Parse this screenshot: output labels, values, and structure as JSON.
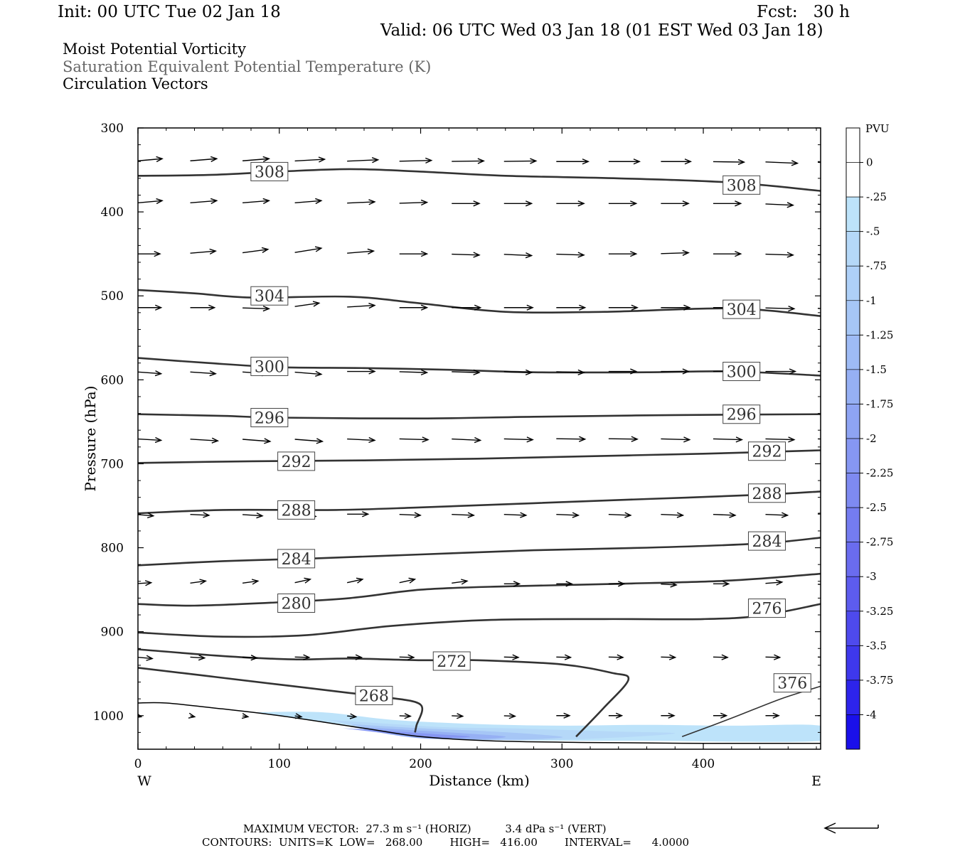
{
  "header": {
    "init": "Init: 00 UTC Tue 02 Jan 18",
    "fcst": "Fcst:   30 h",
    "valid": "Valid: 06 UTC Wed 03 Jan 18 (01 EST Wed 03 Jan 18)",
    "field1": "Moist Potential Vorticity",
    "field2": "Saturation Equivalent Potential Temperature (K)",
    "field3": "Circulation Vectors"
  },
  "footer": {
    "max_vector": "MAXIMUM VECTOR:  27.3 m s⁻¹ (HORIZ)          3.4 dPa s⁻¹ (VERT)",
    "contours": "CONTOURS:  UNITS=K  LOW=   268.00        HIGH=   416.00        INTERVAL=      4.0000"
  },
  "chart_data": {
    "type": "contour",
    "xlabel": "Distance (km)",
    "ylabel": "Pressure (hPa)",
    "xlim": [
      0,
      483
    ],
    "ylim": [
      300,
      1040
    ],
    "y_log": false,
    "x_ticks": [
      "0",
      "100",
      "200",
      "300",
      "400"
    ],
    "x_tick_values": [
      0,
      100,
      200,
      300,
      400
    ],
    "y_ticks": [
      "300",
      "400",
      "500",
      "600",
      "700",
      "800",
      "900",
      "1000"
    ],
    "y_tick_values": [
      300,
      400,
      500,
      600,
      700,
      800,
      900,
      1000
    ],
    "west_label": "W",
    "east_label": "E",
    "colors": {
      "contour": "#333333",
      "terrain": "#000000",
      "vector": "#000000"
    },
    "colorbar": {
      "title": "PVU",
      "labels": [
        "0",
        "-.25",
        "-.5",
        "-.75",
        "-1",
        "-1.25",
        "-1.5",
        "-1.75",
        "-2",
        "-2.25",
        "-2.5",
        "-2.75",
        "-3",
        "-3.25",
        "-3.5",
        "-3.75",
        "-4"
      ],
      "colors": [
        "#ffffff",
        "#ffffff",
        "#bde3fa",
        "#b5d8f8",
        "#aed0f8",
        "#a6c6f6",
        "#9ebbf5",
        "#96b0f4",
        "#8ea4f3",
        "#8697f2",
        "#7e8af1",
        "#747cf0",
        "#6a6cef",
        "#5d5cee",
        "#4e4aed",
        "#3e38ec",
        "#2d24eb",
        "#1a10ea"
      ]
    },
    "terrain": [
      [
        0,
        985
      ],
      [
        20,
        985
      ],
      [
        60,
        992
      ],
      [
        100,
        1000
      ],
      [
        160,
        1015
      ],
      [
        200,
        1025
      ],
      [
        250,
        1030
      ],
      [
        320,
        1032
      ],
      [
        400,
        1033
      ],
      [
        483,
        1033
      ]
    ],
    "contours": [
      {
        "label": "308",
        "points": [
          [
            0,
            357
          ],
          [
            50,
            356
          ],
          [
            100,
            352
          ],
          [
            150,
            349
          ],
          [
            200,
            352
          ],
          [
            260,
            357
          ],
          [
            340,
            360
          ],
          [
            420,
            365
          ],
          [
            483,
            375
          ]
        ],
        "label_at": [
          [
            93,
            352
          ],
          [
            427,
            368
          ]
        ]
      },
      {
        "label": "304",
        "points": [
          [
            0,
            493
          ],
          [
            40,
            497
          ],
          [
            80,
            502
          ],
          [
            150,
            501
          ],
          [
            200,
            509
          ],
          [
            260,
            519
          ],
          [
            330,
            519
          ],
          [
            420,
            515
          ],
          [
            483,
            524
          ]
        ],
        "label_at": [
          [
            93,
            500
          ],
          [
            427,
            516
          ]
        ]
      },
      {
        "label": "300",
        "points": [
          [
            0,
            574
          ],
          [
            50,
            580
          ],
          [
            100,
            585
          ],
          [
            160,
            586
          ],
          [
            220,
            588
          ],
          [
            280,
            591
          ],
          [
            360,
            591
          ],
          [
            420,
            590
          ],
          [
            483,
            595
          ]
        ],
        "label_at": [
          [
            93,
            584
          ],
          [
            427,
            590
          ]
        ]
      },
      {
        "label": "296",
        "points": [
          [
            0,
            641
          ],
          [
            60,
            643
          ],
          [
            100,
            645
          ],
          [
            200,
            646
          ],
          [
            280,
            644
          ],
          [
            380,
            642
          ],
          [
            483,
            641
          ]
        ],
        "label_at": [
          [
            93,
            645
          ],
          [
            427,
            641
          ]
        ]
      },
      {
        "label": "292",
        "points": [
          [
            0,
            699
          ],
          [
            80,
            697
          ],
          [
            160,
            696
          ],
          [
            240,
            694
          ],
          [
            320,
            691
          ],
          [
            400,
            688
          ],
          [
            483,
            684
          ]
        ],
        "label_at": [
          [
            112,
            697
          ],
          [
            445,
            685
          ]
        ]
      },
      {
        "label": "288",
        "points": [
          [
            0,
            759
          ],
          [
            60,
            755
          ],
          [
            140,
            755
          ],
          [
            200,
            752
          ],
          [
            280,
            747
          ],
          [
            360,
            742
          ],
          [
            440,
            737
          ],
          [
            483,
            733
          ]
        ],
        "label_at": [
          [
            112,
            755
          ],
          [
            445,
            735
          ]
        ]
      },
      {
        "label": "284",
        "points": [
          [
            0,
            821
          ],
          [
            60,
            816
          ],
          [
            120,
            813
          ],
          [
            200,
            808
          ],
          [
            280,
            803
          ],
          [
            360,
            800
          ],
          [
            440,
            795
          ],
          [
            483,
            788
          ]
        ],
        "label_at": [
          [
            112,
            813
          ],
          [
            445,
            792
          ]
        ]
      },
      {
        "label": "280",
        "points": [
          [
            0,
            867
          ],
          [
            40,
            869
          ],
          [
            100,
            865
          ],
          [
            150,
            860
          ],
          [
            200,
            850
          ],
          [
            260,
            846
          ],
          [
            340,
            843
          ],
          [
            420,
            839
          ],
          [
            483,
            831
          ]
        ],
        "label_at": [
          [
            112,
            866
          ]
        ]
      },
      {
        "label": "276",
        "points": [
          [
            0,
            901
          ],
          [
            60,
            906
          ],
          [
            120,
            904
          ],
          [
            180,
            893
          ],
          [
            250,
            886
          ],
          [
            330,
            885
          ],
          [
            400,
            885
          ],
          [
            440,
            881
          ],
          [
            483,
            867
          ]
        ],
        "label_at": [
          [
            445,
            872
          ]
        ]
      },
      {
        "label": "272",
        "points": [
          [
            0,
            921
          ],
          [
            60,
            929
          ],
          [
            110,
            933
          ],
          [
            150,
            932
          ],
          [
            200,
            934
          ],
          [
            240,
            934
          ],
          [
            300,
            939
          ],
          [
            335,
            949
          ],
          [
            347,
            957
          ],
          [
            330,
            990
          ],
          [
            310,
            1025
          ]
        ],
        "label_at": [
          [
            222,
            935
          ]
        ]
      },
      {
        "label": "268",
        "points": [
          [
            0,
            943
          ],
          [
            50,
            953
          ],
          [
            100,
            963
          ],
          [
            150,
            973
          ],
          [
            175,
            978
          ],
          [
            200,
            987
          ],
          [
            197,
            1012
          ],
          [
            196,
            1020
          ]
        ],
        "label_at": [
          [
            167,
            976
          ]
        ]
      },
      {
        "label": "376",
        "points": [
          [
            385,
            1025
          ],
          [
            420,
            1003
          ],
          [
            455,
            980
          ],
          [
            483,
            965
          ]
        ],
        "label_at": [
          [
            463,
            961
          ]
        ]
      }
    ],
    "mpv_fill": [
      {
        "level": "-.25",
        "points": [
          [
            80,
            996
          ],
          [
            130,
            996
          ],
          [
            180,
            1005
          ],
          [
            240,
            1010
          ],
          [
            300,
            1012
          ],
          [
            360,
            1011
          ],
          [
            420,
            1012
          ],
          [
            483,
            1012
          ],
          [
            483,
            1030
          ],
          [
            360,
            1030
          ],
          [
            250,
            1029
          ],
          [
            200,
            1024
          ],
          [
            160,
            1014
          ],
          [
            100,
            1000
          ]
        ]
      },
      {
        "level": "-.5",
        "points": [
          [
            135,
            1005
          ],
          [
            180,
            1010
          ],
          [
            220,
            1014
          ],
          [
            260,
            1015
          ],
          [
            300,
            1017
          ],
          [
            340,
            1019
          ],
          [
            380,
            1021
          ],
          [
            340,
            1026
          ],
          [
            280,
            1029
          ],
          [
            200,
            1026
          ],
          [
            160,
            1015
          ]
        ]
      },
      {
        "level": "-1",
        "points": [
          [
            150,
            1010
          ],
          [
            200,
            1015
          ],
          [
            240,
            1018
          ],
          [
            280,
            1022
          ],
          [
            300,
            1026
          ],
          [
            260,
            1029
          ],
          [
            210,
            1027
          ],
          [
            170,
            1019
          ]
        ]
      },
      {
        "level": "-1.5",
        "points": [
          [
            150,
            1013
          ],
          [
            190,
            1017
          ],
          [
            230,
            1021
          ],
          [
            260,
            1025
          ],
          [
            240,
            1028
          ],
          [
            200,
            1027
          ],
          [
            170,
            1020
          ]
        ]
      },
      {
        "level": "-2",
        "points": [
          [
            145,
            1015
          ],
          [
            175,
            1018
          ],
          [
            210,
            1022
          ],
          [
            235,
            1025
          ],
          [
            210,
            1027
          ],
          [
            180,
            1022
          ]
        ]
      }
    ],
    "vectors": [
      {
        "p": 340,
        "u": [
          22,
          24,
          24,
          27,
          28,
          29,
          29,
          29,
          29,
          28,
          27,
          28,
          29,
          28
        ],
        "w": [
          -0.5,
          -0.5,
          -0.5,
          -0.4,
          -0.3,
          -0.2,
          -0.1,
          -0.1,
          0,
          0,
          0,
          0.1,
          0.3,
          0.5
        ]
      },
      {
        "p": 390,
        "u": [
          22,
          24,
          24,
          24,
          25,
          25,
          25,
          25,
          25,
          25,
          25,
          25,
          25,
          25
        ],
        "w": [
          -0.5,
          -0.5,
          -0.5,
          -0.5,
          -0.3,
          -0.2,
          0,
          0,
          0,
          0,
          0,
          0,
          0.3,
          0.5
        ]
      },
      {
        "p": 450,
        "u": [
          20,
          23,
          23,
          24,
          24,
          25,
          25,
          25,
          25,
          25,
          25,
          25,
          25,
          25
        ],
        "w": [
          0,
          -0.5,
          -0.8,
          -1.0,
          -0.5,
          0,
          0.2,
          0.3,
          0.2,
          0,
          -0.2,
          0,
          0.2,
          0.5
        ]
      },
      {
        "p": 514,
        "u": [
          21,
          22,
          24,
          22,
          25,
          25,
          26,
          26,
          26,
          26,
          26,
          26,
          26,
          28
        ],
        "w": [
          0,
          0,
          0.2,
          -0.8,
          -0.4,
          0,
          0,
          0,
          0,
          0,
          0,
          0,
          0.2,
          0.5
        ]
      },
      {
        "p": 590,
        "u": [
          21,
          23,
          23,
          24,
          25,
          25,
          25,
          25,
          25,
          25,
          25,
          25,
          27,
          27
        ],
        "w": [
          0.4,
          0.4,
          0.4,
          0.5,
          0,
          0.2,
          0.2,
          0.2,
          0.2,
          0,
          0,
          0,
          0,
          0
        ]
      },
      {
        "p": 670,
        "u": [
          21,
          25,
          25,
          25,
          25,
          26,
          26,
          26,
          26,
          26,
          26,
          26,
          26,
          27
        ],
        "w": [
          0.3,
          0.4,
          0.5,
          0.5,
          0.3,
          0.2,
          0.3,
          0.2,
          0.1,
          0.1,
          0.2,
          0.2,
          0.2,
          0.2
        ]
      },
      {
        "p": 760,
        "u": [
          14,
          17,
          18,
          19,
          19,
          19,
          20,
          20,
          20,
          20,
          20,
          20,
          20,
          22
        ],
        "w": [
          0.3,
          0.2,
          0.3,
          0.4,
          0,
          0.2,
          0.2,
          0.2,
          0.2,
          0.2,
          0.2,
          0.2,
          0.2,
          -0.5
        ]
      },
      {
        "p": 843,
        "u": [
          12,
          14,
          14,
          14,
          14,
          14,
          14,
          14,
          14,
          14,
          14,
          14,
          15,
          15
        ],
        "w": [
          -0.2,
          -0.5,
          -0.5,
          -0.8,
          -0.8,
          -0.8,
          -0.5,
          0,
          0,
          0,
          0.2,
          0,
          -0.3,
          0.3
        ]
      },
      {
        "p": 930,
        "u": [
          13,
          13,
          13,
          13,
          13,
          13,
          13,
          13,
          13,
          13,
          13,
          13,
          13,
          13
        ],
        "w": [
          0.3,
          0.2,
          0.2,
          0.1,
          0.1,
          0.1,
          0.1,
          0.1,
          0.1,
          0.1,
          0.1,
          0.1,
          0.1,
          0.1
        ]
      },
      {
        "p": 1000,
        "u": [
          3,
          4,
          5,
          6,
          8,
          10,
          10,
          10,
          12,
          12,
          12,
          12,
          12,
          12
        ],
        "w": [
          0.2,
          0.2,
          0.2,
          0.2,
          0.2,
          0.1,
          0.1,
          0.1,
          0,
          0,
          0,
          0,
          0,
          0
        ]
      }
    ]
  }
}
